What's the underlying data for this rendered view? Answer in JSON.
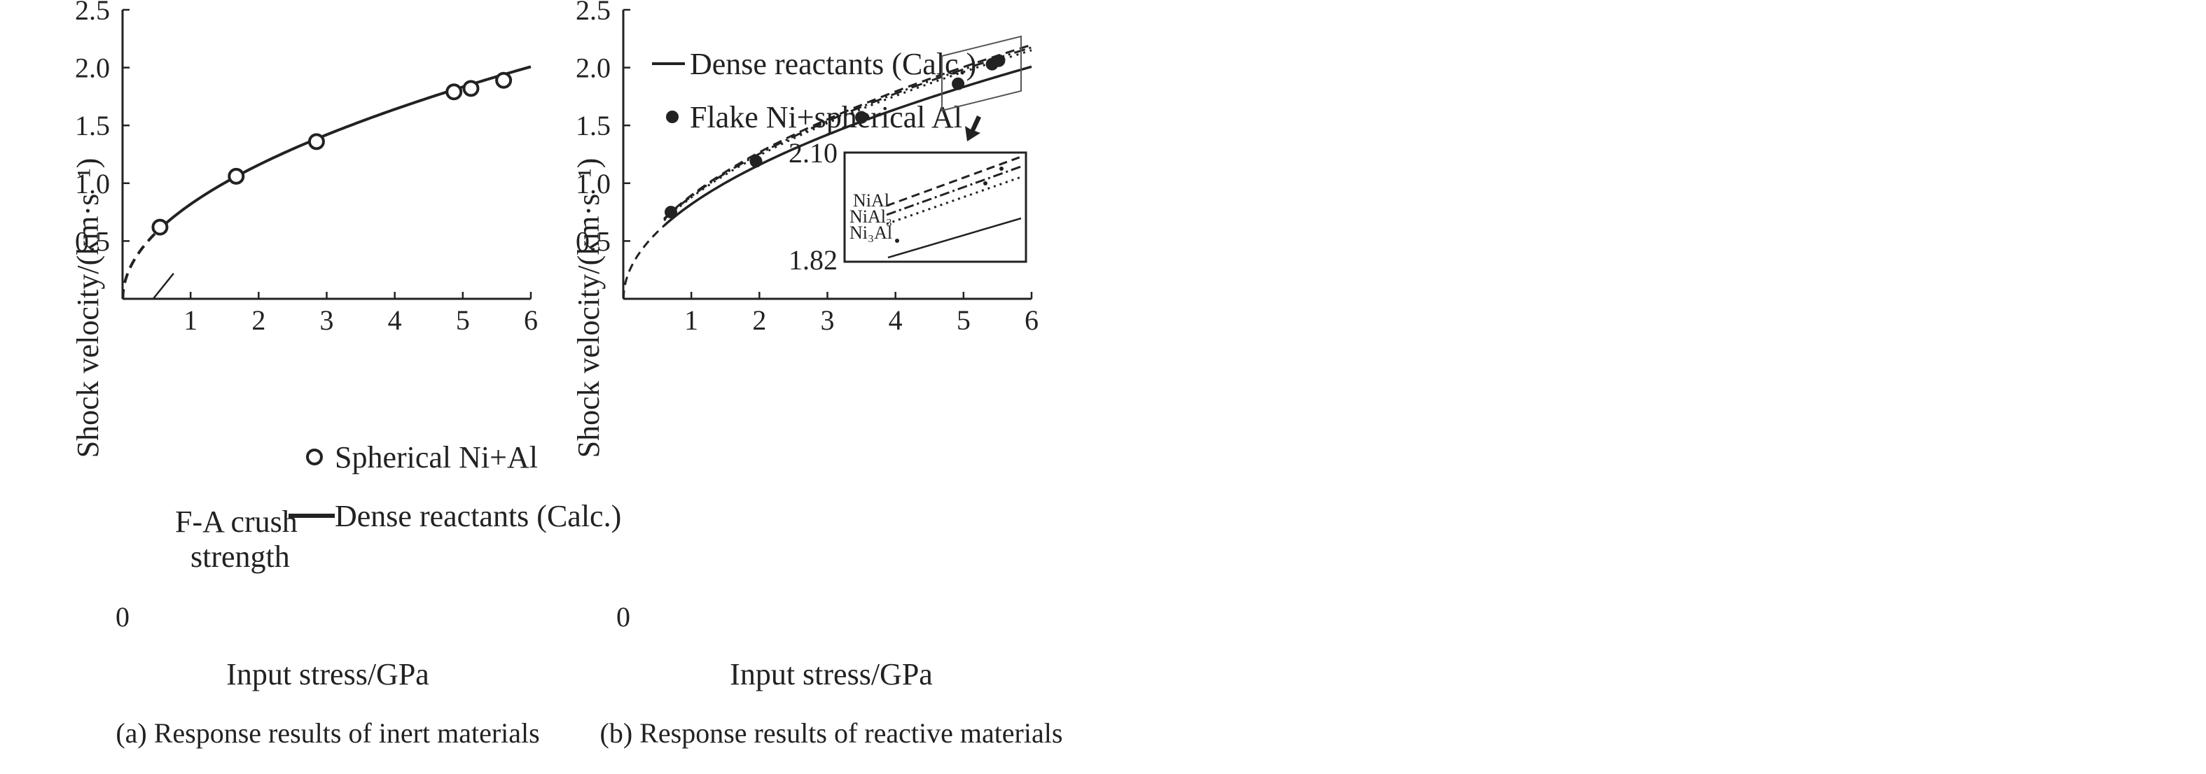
{
  "chart_data": [
    {
      "type": "line",
      "caption": "(a) Response results of inert materials",
      "xlabel": "Input stress/GPa",
      "ylabel": "Shock velocity/(km·s⁻¹)",
      "xlim": [
        0,
        6
      ],
      "ylim": [
        0,
        2.5
      ],
      "xticks": [
        "0",
        "1",
        "2",
        "3",
        "4",
        "5",
        "6"
      ],
      "yticks": [
        "0.5",
        "1.0",
        "1.5",
        "2.0",
        "2.5"
      ],
      "series": [
        {
          "name": "Spherical Ni+Al",
          "kind": "scatter",
          "marker": "open-circle",
          "x": [
            0.55,
            1.67,
            2.85,
            4.87,
            5.12,
            5.6
          ],
          "y": [
            0.62,
            1.06,
            1.36,
            1.79,
            1.82,
            1.89
          ]
        },
        {
          "name": "Dense reactants (Calc.)",
          "kind": "curve",
          "model": "y = 0.82*(x-0.0035)^0.5",
          "solid_from_x": 0.58,
          "dashed_before": true
        }
      ],
      "annotations": [
        {
          "text_lines": [
            "F-A crush",
            "strength"
          ],
          "line_from": [
            0.45,
            0
          ],
          "line_to": [
            0.75,
            0.22
          ]
        }
      ]
    },
    {
      "type": "line",
      "caption": "(b) Response results of reactive materials",
      "xlabel": "Input stress/GPa",
      "ylabel": "Shock velocity/(km·s⁻¹)",
      "xlim": [
        0,
        6
      ],
      "ylim": [
        0,
        2.5
      ],
      "xticks": [
        "0",
        "1",
        "2",
        "3",
        "4",
        "5",
        "6"
      ],
      "yticks": [
        "0.5",
        "1.0",
        "1.5",
        "2.0",
        "2.5"
      ],
      "series": [
        {
          "name": "Dense reactants (Calc.)",
          "kind": "curve",
          "model": "y = 0.82*(x-0.0035)^0.5",
          "solid_from_x": 0.6,
          "dashed_before": true
        },
        {
          "name": "Flake Ni+spherical Al",
          "kind": "scatter",
          "marker": "filled-circle",
          "x": [
            0.7,
            1.95,
            3.5,
            4.92,
            5.42,
            5.52
          ],
          "y": [
            0.75,
            1.19,
            1.57,
            1.86,
            2.03,
            2.06
          ]
        },
        {
          "name": "NiAl",
          "kind": "curve",
          "style": "dashed",
          "model": "y = 0.897*(x-0.0035)^0.5"
        },
        {
          "name": "NiAl₃",
          "kind": "curve",
          "style": "dash-dot",
          "model": "y = 0.888*(x-0.0035)^0.5"
        },
        {
          "name": "Ni₃Al",
          "kind": "curve",
          "style": "dotted",
          "model": "y = 0.878*(x-0.0035)^0.5"
        }
      ],
      "inset": {
        "ylim_labels": [
          "2.10",
          "1.82"
        ],
        "labels": [
          "NiAl",
          "NiAl₃",
          "Ni₃Al"
        ]
      }
    }
  ]
}
